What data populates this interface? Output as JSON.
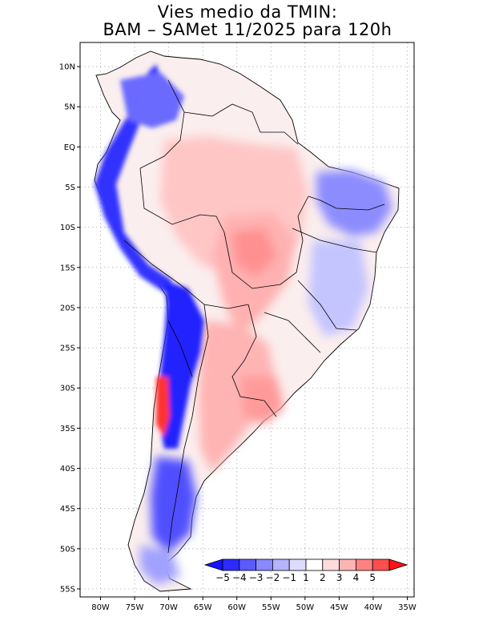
{
  "title": {
    "line1": "Vies medio da TMIN:",
    "line2": "BAM – SAMet 11/2025  para 120h"
  },
  "map": {
    "lon_range": [
      -83,
      -34
    ],
    "lat_range": [
      -56,
      13
    ],
    "lat_ticks": [
      {
        "lat": 10,
        "label": "10N"
      },
      {
        "lat": 5,
        "label": "5N"
      },
      {
        "lat": 0,
        "label": "EQ"
      },
      {
        "lat": -5,
        "label": "5S"
      },
      {
        "lat": -10,
        "label": "10S"
      },
      {
        "lat": -15,
        "label": "15S"
      },
      {
        "lat": -20,
        "label": "20S"
      },
      {
        "lat": -25,
        "label": "25S"
      },
      {
        "lat": -30,
        "label": "30S"
      },
      {
        "lat": -35,
        "label": "35S"
      },
      {
        "lat": -40,
        "label": "40S"
      },
      {
        "lat": -45,
        "label": "45S"
      },
      {
        "lat": -50,
        "label": "50S"
      },
      {
        "lat": -55,
        "label": "55S"
      }
    ],
    "lon_ticks": [
      {
        "lon": -80,
        "label": "80W"
      },
      {
        "lon": -75,
        "label": "75W"
      },
      {
        "lon": -70,
        "label": "70W"
      },
      {
        "lon": -65,
        "label": "65W"
      },
      {
        "lon": -60,
        "label": "60W"
      },
      {
        "lon": -55,
        "label": "55W"
      },
      {
        "lon": -50,
        "label": "50W"
      },
      {
        "lon": -45,
        "label": "45W"
      },
      {
        "lon": -40,
        "label": "40W"
      },
      {
        "lon": -35,
        "label": "35W"
      }
    ]
  },
  "colorbar": {
    "labels": [
      "−5",
      "−4",
      "−3",
      "−2",
      "−1",
      "1",
      "2",
      "3",
      "4",
      "5"
    ],
    "low_color": "#1414ff",
    "high_color": "#ff1414",
    "colors": [
      "#2b2bff",
      "#5a5aff",
      "#8888ff",
      "#b4b4ff",
      "#dcdcff",
      "#ffffff",
      "#ffdcdc",
      "#ffb4b4",
      "#ff8282",
      "#ff4e4e"
    ]
  },
  "colors": {
    "ocean": "#ffffff",
    "border": "#000000",
    "grid": "#b0b0b0"
  }
}
